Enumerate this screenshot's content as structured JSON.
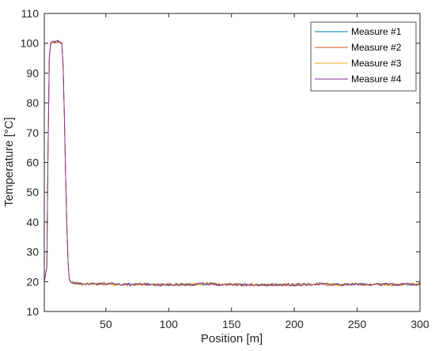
{
  "chart_data": {
    "type": "line",
    "title": "",
    "xlabel": "Position  [m]",
    "ylabel": "Temperature  [°C]",
    "xlim": [
      1,
      300
    ],
    "ylim": [
      10,
      110
    ],
    "xticks": [
      50,
      100,
      150,
      200,
      250,
      300
    ],
    "yticks": [
      10,
      20,
      30,
      40,
      50,
      60,
      70,
      80,
      90,
      100,
      110
    ],
    "grid": false,
    "legend_position": "top-right",
    "base_profile": {
      "x": [
        1,
        3,
        4,
        5,
        6,
        8,
        10,
        12,
        14,
        15,
        16,
        17,
        18,
        19,
        20,
        21,
        22,
        25,
        30,
        40,
        50,
        60,
        70,
        80,
        90,
        100,
        110,
        120,
        130,
        140,
        150,
        160,
        170,
        180,
        190,
        200,
        210,
        220,
        230,
        240,
        250,
        260,
        270,
        280,
        290,
        300
      ],
      "y": [
        20,
        25,
        65,
        95,
        100,
        100.5,
        100.4,
        100.6,
        100.3,
        100,
        92,
        75,
        55,
        38,
        26,
        21,
        20,
        19.5,
        19.3,
        19.2,
        19.3,
        19.1,
        19,
        19.2,
        18.9,
        19,
        19.1,
        19,
        19.4,
        19,
        19.1,
        18.9,
        19,
        18.9,
        19,
        19,
        19.1,
        19.2,
        19.1,
        19,
        19.2,
        19,
        19.1,
        19,
        19.2,
        19
      ]
    },
    "series": [
      {
        "name": "Measure #1",
        "color": "#0072BD"
      },
      {
        "name": "Measure #2",
        "color": "#D95319"
      },
      {
        "name": "Measure #3",
        "color": "#EDB120"
      },
      {
        "name": "Measure #4",
        "color": "#7E2F8E"
      }
    ]
  }
}
